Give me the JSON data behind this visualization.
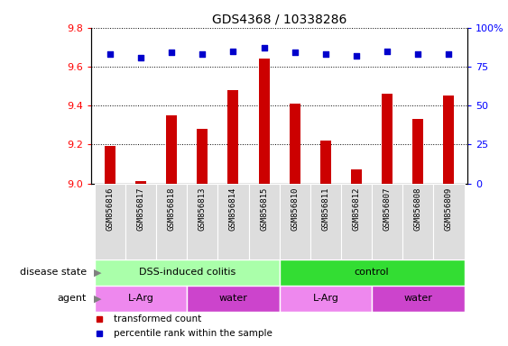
{
  "title": "GDS4368 / 10338286",
  "samples": [
    "GSM856816",
    "GSM856817",
    "GSM856818",
    "GSM856813",
    "GSM856814",
    "GSM856815",
    "GSM856810",
    "GSM856811",
    "GSM856812",
    "GSM856807",
    "GSM856808",
    "GSM856809"
  ],
  "red_values": [
    9.19,
    9.01,
    9.35,
    9.28,
    9.48,
    9.64,
    9.41,
    9.22,
    9.07,
    9.46,
    9.33,
    9.45
  ],
  "blue_values": [
    83,
    81,
    84,
    83,
    85,
    87,
    84,
    83,
    82,
    85,
    83,
    83
  ],
  "ylim_left": [
    9.0,
    9.8
  ],
  "ylim_right": [
    0,
    100
  ],
  "yticks_left": [
    9.0,
    9.2,
    9.4,
    9.6,
    9.8
  ],
  "yticks_right": [
    0,
    25,
    50,
    75,
    100
  ],
  "bar_color": "#CC0000",
  "dot_color": "#0000CC",
  "disease_state_groups": [
    {
      "label": "DSS-induced colitis",
      "start": 0,
      "end": 6,
      "color": "#AAFFAA"
    },
    {
      "label": "control",
      "start": 6,
      "end": 12,
      "color": "#33DD33"
    }
  ],
  "agent_groups": [
    {
      "label": "L-Arg",
      "start": 0,
      "end": 3,
      "color": "#EE88EE"
    },
    {
      "label": "water",
      "start": 3,
      "end": 6,
      "color": "#CC44CC"
    },
    {
      "label": "L-Arg",
      "start": 6,
      "end": 9,
      "color": "#EE88EE"
    },
    {
      "label": "water",
      "start": 9,
      "end": 12,
      "color": "#CC44CC"
    }
  ],
  "legend_items": [
    {
      "label": "transformed count",
      "color": "#CC0000"
    },
    {
      "label": "percentile rank within the sample",
      "color": "#0000CC"
    }
  ],
  "label_ds": "disease state",
  "label_ag": "agent",
  "xtick_bg": "#DDDDDD",
  "bar_width": 0.35
}
